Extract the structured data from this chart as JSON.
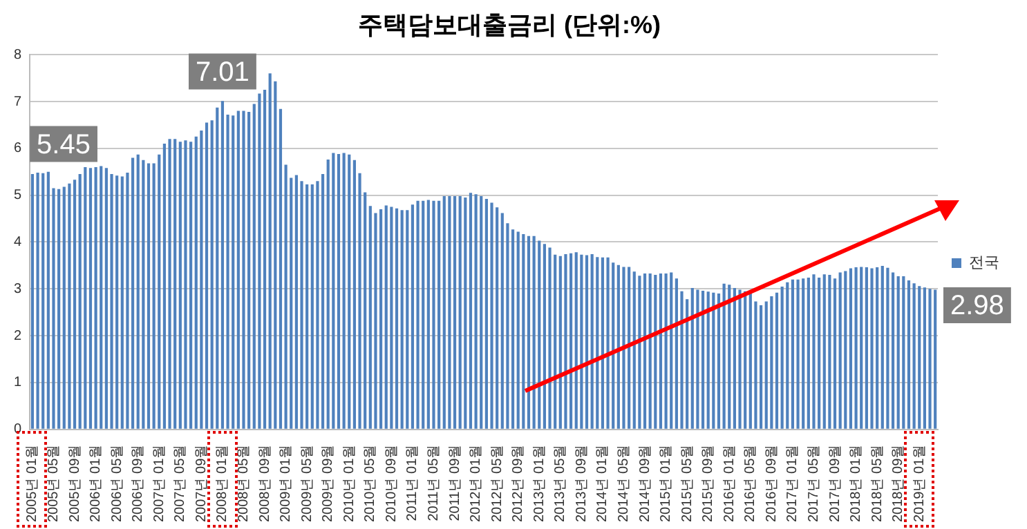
{
  "chart_data": {
    "type": "bar",
    "title": "주택담보대출금리 (단위:%)",
    "categories": [
      "2005년 01월",
      null,
      null,
      null,
      "2005년 05월",
      null,
      null,
      null,
      "2005년 09월",
      null,
      null,
      null,
      "2006년 01월",
      null,
      null,
      null,
      "2006년 05월",
      null,
      null,
      null,
      "2006년 09월",
      null,
      null,
      null,
      "2007년 01월",
      null,
      null,
      null,
      "2007년 05월",
      null,
      null,
      null,
      "2007년 09월",
      null,
      null,
      null,
      "2008년 01월",
      null,
      null,
      null,
      "2008년 05월",
      null,
      null,
      null,
      "2008년 09월",
      null,
      null,
      null,
      "2009년 01월",
      null,
      null,
      null,
      "2009년 05월",
      null,
      null,
      null,
      "2009년 09월",
      null,
      null,
      null,
      "2010년 01월",
      null,
      null,
      null,
      "2010년 05월",
      null,
      null,
      null,
      "2010년 09월",
      null,
      null,
      null,
      "2011년 01월",
      null,
      null,
      null,
      "2011년 05월",
      null,
      null,
      null,
      "2011년 09월",
      null,
      null,
      null,
      "2012년 01월",
      null,
      null,
      null,
      "2012년 05월",
      null,
      null,
      null,
      "2012년 09월",
      null,
      null,
      null,
      "2013년 01월",
      null,
      null,
      null,
      "2013년 05월",
      null,
      null,
      null,
      "2013년 09월",
      null,
      null,
      null,
      "2014년 01월",
      null,
      null,
      null,
      "2014년 05월",
      null,
      null,
      null,
      "2014년 09월",
      null,
      null,
      null,
      "2015년 01월",
      null,
      null,
      null,
      "2015년 05월",
      null,
      null,
      null,
      "2015년 09월",
      null,
      null,
      null,
      "2016년 01월",
      null,
      null,
      null,
      "2016년 05월",
      null,
      null,
      null,
      "2016년 09월",
      null,
      null,
      null,
      "2017년 01월",
      null,
      null,
      null,
      "2017년 05월",
      null,
      null,
      null,
      "2017년 09월",
      null,
      null,
      null,
      "2018년 01월",
      null,
      null,
      null,
      "2018년 05월",
      null,
      null,
      null,
      "2018년 09월",
      null,
      null,
      null,
      "2019년 01월",
      null,
      null,
      null
    ],
    "series": [
      {
        "name": "전국",
        "color": "#4f81bd",
        "values": [
          5.45,
          5.48,
          5.47,
          5.5,
          5.15,
          5.13,
          5.18,
          5.25,
          5.33,
          5.45,
          5.6,
          5.58,
          5.6,
          5.62,
          5.58,
          5.45,
          5.42,
          5.4,
          5.48,
          5.8,
          5.87,
          5.75,
          5.68,
          5.68,
          5.87,
          6.1,
          6.2,
          6.2,
          6.14,
          6.17,
          6.14,
          6.25,
          6.38,
          6.55,
          6.6,
          6.87,
          7.01,
          6.72,
          6.7,
          6.8,
          6.8,
          6.78,
          6.95,
          7.17,
          7.25,
          7.6,
          7.43,
          6.84,
          5.65,
          5.37,
          5.43,
          5.3,
          5.23,
          5.23,
          5.3,
          5.45,
          5.76,
          5.9,
          5.88,
          5.9,
          5.87,
          5.75,
          5.47,
          5.06,
          4.77,
          4.62,
          4.7,
          4.78,
          4.75,
          4.72,
          4.68,
          4.68,
          4.8,
          4.88,
          4.88,
          4.9,
          4.88,
          4.88,
          4.98,
          4.98,
          4.98,
          4.98,
          4.95,
          5.05,
          5.02,
          4.98,
          4.92,
          4.84,
          4.74,
          4.62,
          4.4,
          4.27,
          4.22,
          4.17,
          4.13,
          4.13,
          4.03,
          3.96,
          3.88,
          3.73,
          3.7,
          3.74,
          3.76,
          3.78,
          3.73,
          3.72,
          3.74,
          3.68,
          3.67,
          3.67,
          3.56,
          3.51,
          3.47,
          3.47,
          3.37,
          3.28,
          3.33,
          3.33,
          3.3,
          3.33,
          3.33,
          3.35,
          3.22,
          2.95,
          2.78,
          3.02,
          2.98,
          2.96,
          2.94,
          2.92,
          2.9,
          3.11,
          3.09,
          3.02,
          2.98,
          2.95,
          2.9,
          2.73,
          2.65,
          2.73,
          2.84,
          2.92,
          3.05,
          3.14,
          3.2,
          3.2,
          3.22,
          3.24,
          3.31,
          3.24,
          3.31,
          3.3,
          3.22,
          3.35,
          3.38,
          3.44,
          3.46,
          3.47,
          3.46,
          3.44,
          3.46,
          3.49,
          3.45,
          3.35,
          3.27,
          3.27,
          3.18,
          3.12,
          3.06,
          3.03,
          3.0,
          2.98
        ]
      }
    ],
    "ylim": [
      0,
      8
    ],
    "yticks": [
      0,
      1,
      2,
      3,
      4,
      5,
      6,
      7,
      8
    ],
    "grid": "y",
    "legend": "right",
    "annotations": [
      {
        "text": "5.45",
        "x": "2005년 01월",
        "y": 5.45
      },
      {
        "text": "7.01",
        "x": "2008년 01월",
        "y": 7.01
      },
      "2.98"
    ]
  }
}
